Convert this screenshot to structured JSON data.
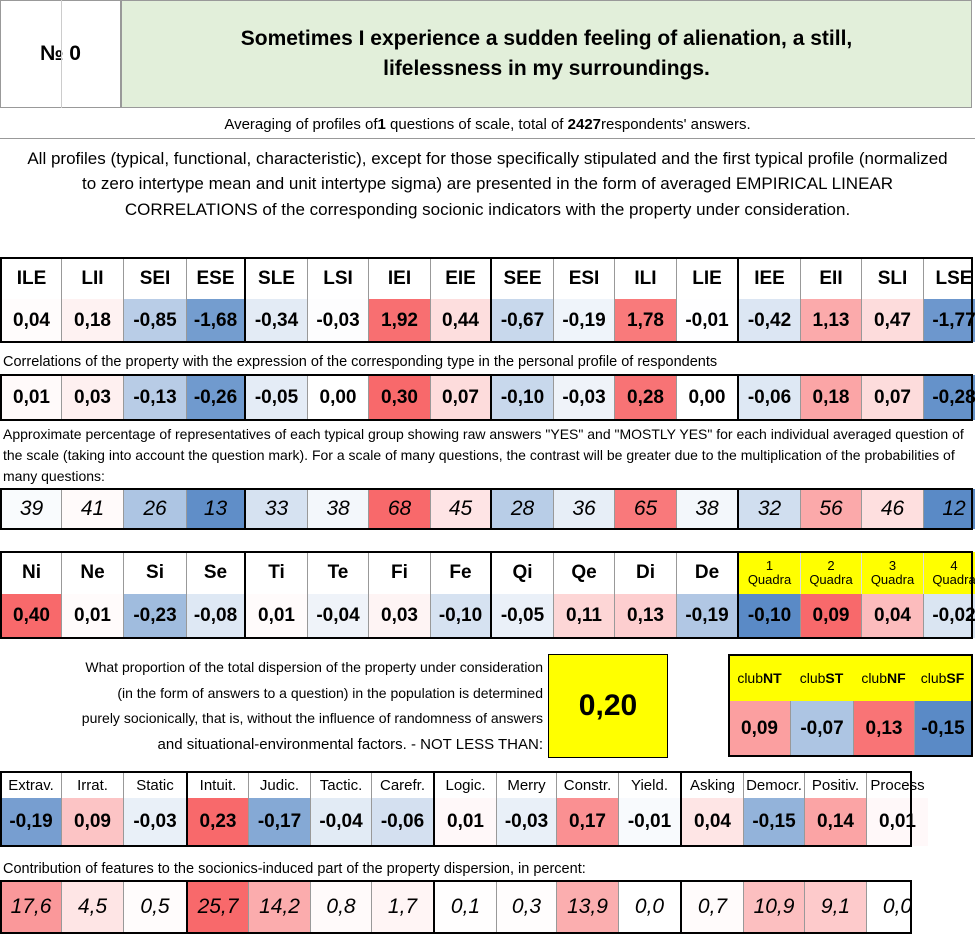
{
  "header": {
    "num_label": "№ 0",
    "question_line1": "Sometimes I experience a sudden feeling of alienation, a still,",
    "question_line2": "lifelessness in my surroundings."
  },
  "averaging": {
    "prefix": "Averaging of profiles of ",
    "count": "1",
    "middle": " questions of scale, total of ",
    "total": "2427",
    "suffix": " respondents' answers."
  },
  "description": "All profiles (typical, functional, characteristic), except for those specifically stipulated and the first typical profile (normalized to zero intertype mean and unit intertype sigma) are presented in the form of averaged EMPIRICAL LINEAR CORRELATIONS of the corresponding socionic indicators with the property under consideration.",
  "types": {
    "headers": [
      "ILE",
      "LII",
      "SEI",
      "ESE",
      "SLE",
      "LSI",
      "IEI",
      "EIE",
      "SEE",
      "ESI",
      "ILI",
      "LIE",
      "IEE",
      "EII",
      "SLI",
      "LSE"
    ],
    "normalized": [
      "0,04",
      "0,18",
      "-0,85",
      "-1,68",
      "-0,34",
      "-0,03",
      "1,92",
      "0,44",
      "-0,67",
      "-0,19",
      "1,78",
      "-0,01",
      "-0,42",
      "1,13",
      "0,47",
      "-1,77"
    ],
    "correlation_caption": "Correlations of the property with the expression of the corresponding type in the personal profile of respondents",
    "correlations": [
      "0,01",
      "0,03",
      "-0,13",
      "-0,26",
      "-0,05",
      "0,00",
      "0,30",
      "0,07",
      "-0,10",
      "-0,03",
      "0,28",
      "0,00",
      "-0,06",
      "0,18",
      "0,07",
      "-0,28"
    ],
    "percentage_caption": "Approximate percentage of representatives of each typical group showing raw answers \"YES\" and \"MOSTLY YES\" for each individual averaged question of the scale (taking into account the question mark). For a scale of many questions, the contrast will be greater due to the multiplication of the probabilities of many questions:",
    "percentages": [
      "39",
      "41",
      "26",
      "13",
      "33",
      "38",
      "68",
      "45",
      "28",
      "36",
      "65",
      "38",
      "32",
      "56",
      "46",
      "12"
    ]
  },
  "functions": {
    "headers": [
      "Ni",
      "Ne",
      "Si",
      "Se",
      "Ti",
      "Te",
      "Fi",
      "Fe",
      "Qi",
      "Qe",
      "Di",
      "De"
    ],
    "values": [
      "0,40",
      "0,01",
      "-0,23",
      "-0,08",
      "0,01",
      "-0,04",
      "0,03",
      "-0,10",
      "-0,05",
      "0,11",
      "0,13",
      "-0,19"
    ]
  },
  "quadras": {
    "headers": [
      {
        "num": "1",
        "label": "Quadra"
      },
      {
        "num": "2",
        "label": "Quadra"
      },
      {
        "num": "3",
        "label": "Quadra"
      },
      {
        "num": "4",
        "label": "Quadra"
      }
    ],
    "values": [
      "-0,10",
      "0,09",
      "0,04",
      "-0,02"
    ]
  },
  "dispersion": {
    "line1": "What proportion of the total dispersion of the property under consideration",
    "line2": "(in the form of answers to a question) in the population is determined",
    "line3": "purely socionically, that is, without the influence of randomness of answers",
    "line4": "and situational-environmental factors. - NOT LESS THAN:",
    "value": "0,20"
  },
  "clubs": {
    "headers": [
      {
        "prefix": "club",
        "code": "NT"
      },
      {
        "prefix": "club",
        "code": "ST"
      },
      {
        "prefix": "club",
        "code": "NF"
      },
      {
        "prefix": "club",
        "code": "SF"
      }
    ],
    "values": [
      "0,09",
      "-0,07",
      "0,13",
      "-0,15"
    ]
  },
  "features": {
    "headers": [
      "Extrav.",
      "Irrat.",
      "Static",
      "Intuit.",
      "Judic.",
      "Tactic.",
      "Carefr.",
      "Logic.",
      "Merry",
      "Constr.",
      "Yield.",
      "Asking",
      "Democr.",
      "Positiv.",
      "Process"
    ],
    "values": [
      "-0,19",
      "0,09",
      "-0,03",
      "0,23",
      "-0,17",
      "-0,04",
      "-0,06",
      "0,01",
      "-0,03",
      "0,17",
      "-0,01",
      "0,04",
      "-0,15",
      "0,14",
      "0,01"
    ],
    "contribution_caption": "Contribution of features to the socionics-induced part of the property dispersion, in percent:",
    "contributions": [
      "17,6",
      "4,5",
      "0,5",
      "25,7",
      "14,2",
      "0,8",
      "1,7",
      "0,1",
      "0,3",
      "13,9",
      "0,0",
      "0,7",
      "10,9",
      "9,1",
      "0,0"
    ]
  },
  "colors": {
    "header_green": "#e2efda",
    "highlight_yellow": "#ffff00",
    "positive_strong": "#f8696b",
    "negative_strong": "#5a8ac6"
  }
}
